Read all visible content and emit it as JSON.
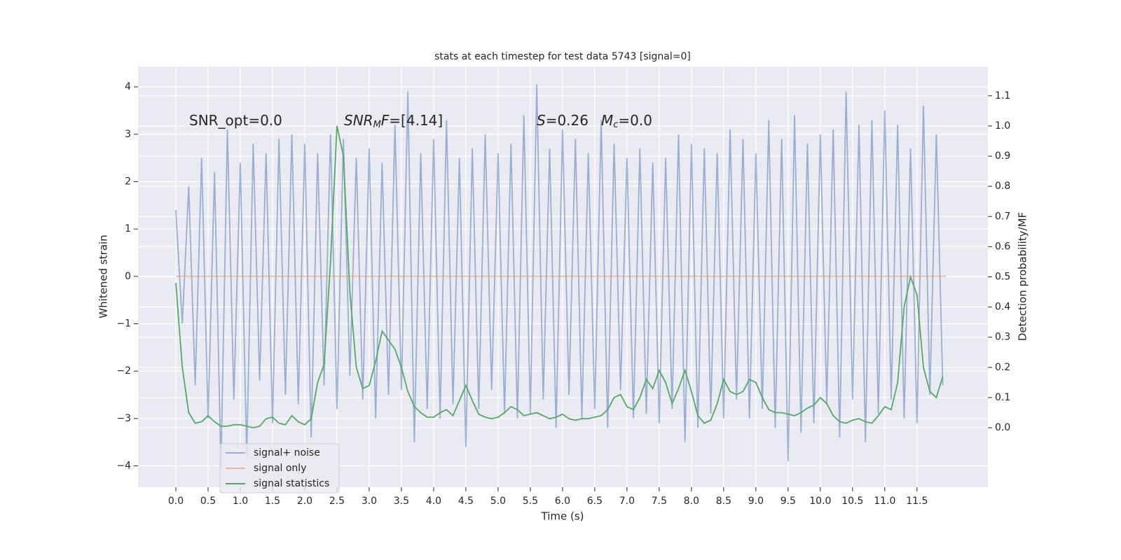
{
  "chart_data": {
    "type": "line",
    "title": "stats at each timestep for test data 5743 [signal=0]",
    "x_label": "Time (s)",
    "y_label": "Whitened strain",
    "y2_label": "Detection probability/MF",
    "annotations": [
      [
        {
          "text": "SNR_opt=0.0",
          "style": "normal"
        }
      ],
      [
        {
          "text": "SNR",
          "style": "italic"
        },
        {
          "text": "M",
          "style": "sub"
        },
        {
          "text": "F",
          "style": "italic"
        },
        {
          "text": "=[4.14]",
          "style": "normal"
        }
      ],
      [
        {
          "text": "S",
          "style": "italic"
        },
        {
          "text": "=0.26",
          "style": "normal"
        }
      ],
      [
        {
          "text": "M",
          "style": "italic"
        },
        {
          "text": "c",
          "style": "sub"
        },
        {
          "text": "=0.0",
          "style": "normal"
        }
      ]
    ],
    "x": [
      0,
      0.1,
      0.2,
      0.3,
      0.4,
      0.5,
      0.6,
      0.7,
      0.8,
      0.9,
      1,
      1.1,
      1.2,
      1.3,
      1.4,
      1.5,
      1.6,
      1.7,
      1.8,
      1.9,
      2,
      2.1,
      2.2,
      2.3,
      2.4,
      2.5,
      2.6,
      2.7,
      2.8,
      2.9,
      3,
      3.1,
      3.2,
      3.3,
      3.4,
      3.5,
      3.6,
      3.7,
      3.8,
      3.9,
      4,
      4.1,
      4.2,
      4.3,
      4.4,
      4.5,
      4.6,
      4.7,
      4.8,
      4.9,
      5,
      5.1,
      5.2,
      5.3,
      5.4,
      5.5,
      5.6,
      5.7,
      5.8,
      5.9,
      6,
      6.1,
      6.2,
      6.3,
      6.4,
      6.5,
      6.6,
      6.7,
      6.8,
      6.9,
      7,
      7.1,
      7.2,
      7.3,
      7.4,
      7.5,
      7.6,
      7.7,
      7.8,
      7.9,
      8,
      8.1,
      8.2,
      8.3,
      8.4,
      8.5,
      8.6,
      8.7,
      8.8,
      8.9,
      9,
      9.1,
      9.2,
      9.3,
      9.4,
      9.5,
      9.6,
      9.7,
      9.8,
      9.9,
      10,
      10.1,
      10.2,
      10.3,
      10.4,
      10.5,
      10.6,
      10.7,
      10.8,
      10.9,
      11,
      11.1,
      11.2,
      11.3,
      11.4,
      11.5,
      11.6,
      11.7,
      11.8,
      11.9
    ],
    "series": [
      {
        "name": "signal+ noise",
        "color": "#4c72b0",
        "opacity": 0.5,
        "axis": "y",
        "values": [
          1.4,
          -1.0,
          1.9,
          -2.3,
          2.5,
          -3.0,
          2.2,
          -4.05,
          3.1,
          -2.6,
          2.4,
          -3.8,
          2.8,
          -2.2,
          2.6,
          -3.1,
          2.9,
          -2.5,
          3.0,
          -2.7,
          2.8,
          -3.4,
          2.6,
          -2.3,
          3.0,
          -2.8,
          2.9,
          -2.1,
          2.5,
          -2.6,
          2.7,
          -3.0,
          2.4,
          -2.5,
          3.2,
          -2.4,
          3.9,
          -3.5,
          2.6,
          -2.8,
          2.9,
          -3.0,
          3.3,
          -2.7,
          2.5,
          -3.6,
          2.7,
          -2.8,
          3.0,
          -2.4,
          2.6,
          -2.9,
          2.8,
          -3.0,
          3.4,
          -2.9,
          4.05,
          -2.6,
          2.7,
          -3.2,
          3.1,
          -2.5,
          2.9,
          -3.0,
          2.6,
          -2.8,
          3.3,
          -3.2,
          2.8,
          -2.4,
          2.5,
          -3.0,
          2.7,
          -2.9,
          2.4,
          -3.1,
          2.5,
          -2.8,
          3.0,
          -3.5,
          2.8,
          -3.2,
          2.7,
          -2.9,
          2.6,
          -3.0,
          3.1,
          -2.6,
          2.9,
          -3.0,
          2.6,
          -2.8,
          3.3,
          -3.2,
          2.9,
          -3.9,
          3.4,
          -3.3,
          2.8,
          -3.1,
          3.0,
          -2.7,
          3.1,
          -3.4,
          3.9,
          -2.6,
          3.2,
          -3.5,
          3.3,
          -2.9,
          3.5,
          -2.6,
          3.2,
          -3.0,
          2.7,
          -3.1,
          3.6,
          -2.5,
          3.0,
          -2.3
        ]
      },
      {
        "name": "signal only",
        "color": "#dd8452",
        "opacity": 0.5,
        "axis": "y",
        "x": [
          0,
          11.95
        ],
        "values": [
          0,
          0
        ]
      },
      {
        "name": "signal statistics",
        "color": "#55a868",
        "opacity": 1,
        "axis": "y2",
        "values": [
          0.48,
          0.2,
          0.05,
          0.015,
          0.02,
          0.04,
          0.02,
          0.005,
          0.005,
          0.01,
          0.01,
          0.005,
          0.0,
          0.005,
          0.03,
          0.035,
          0.015,
          0.01,
          0.04,
          0.02,
          0.01,
          0.03,
          0.15,
          0.21,
          0.55,
          1.0,
          0.9,
          0.45,
          0.2,
          0.13,
          0.14,
          0.22,
          0.32,
          0.29,
          0.26,
          0.2,
          0.12,
          0.07,
          0.05,
          0.035,
          0.035,
          0.05,
          0.06,
          0.04,
          0.09,
          0.14,
          0.09,
          0.045,
          0.035,
          0.03,
          0.035,
          0.05,
          0.07,
          0.06,
          0.04,
          0.045,
          0.05,
          0.04,
          0.03,
          0.035,
          0.045,
          0.03,
          0.025,
          0.03,
          0.03,
          0.035,
          0.04,
          0.06,
          0.1,
          0.11,
          0.07,
          0.06,
          0.1,
          0.16,
          0.13,
          0.19,
          0.15,
          0.08,
          0.13,
          0.19,
          0.12,
          0.04,
          0.015,
          0.025,
          0.08,
          0.16,
          0.12,
          0.11,
          0.12,
          0.16,
          0.15,
          0.1,
          0.06,
          0.05,
          0.05,
          0.045,
          0.04,
          0.05,
          0.065,
          0.075,
          0.1,
          0.08,
          0.04,
          0.02,
          0.015,
          0.025,
          0.03,
          0.02,
          0.015,
          0.04,
          0.07,
          0.06,
          0.15,
          0.4,
          0.5,
          0.44,
          0.2,
          0.12,
          0.1,
          0.17
        ]
      }
    ],
    "xlim": [
      -0.587,
      12.6
    ],
    "xticks": [
      {
        "value": 0,
        "label": "0.0"
      },
      0.5,
      {
        "value": 1,
        "label": "1.0"
      },
      1.5,
      {
        "value": 2,
        "label": "2.0"
      },
      2.5,
      {
        "value": 3,
        "label": "3.0"
      },
      3.5,
      {
        "value": 4,
        "label": "4.0"
      },
      4.5,
      {
        "value": 5,
        "label": "5.0"
      },
      5.5,
      {
        "value": 6,
        "label": "6.0"
      },
      6.5,
      {
        "value": 7,
        "label": "7.0"
      },
      7.5,
      {
        "value": 8,
        "label": "8.0"
      },
      8.5,
      {
        "value": 9,
        "label": "9.0"
      },
      9.5,
      {
        "value": 10,
        "label": "10.0"
      },
      10.5,
      {
        "value": 11,
        "label": "11.0"
      },
      11.5
    ],
    "ylim": [
      -4.45,
      4.43
    ],
    "yticks": [
      {
        "value": -4,
        "label": "−4"
      },
      {
        "value": -3,
        "label": "−3"
      },
      {
        "value": -2,
        "label": "−2"
      },
      {
        "value": -1,
        "label": "−1"
      },
      0,
      1,
      2,
      3,
      4
    ],
    "y2lim": [
      -0.197,
      1.197
    ],
    "y2ticks": [
      {
        "value": 0,
        "label": "0.0"
      },
      0.1,
      0.2,
      0.3,
      0.4,
      0.5,
      0.6,
      0.7,
      0.8,
      0.9,
      {
        "value": 1,
        "label": "1.0"
      },
      1.1
    ],
    "grid": true,
    "legend": "lower left"
  }
}
